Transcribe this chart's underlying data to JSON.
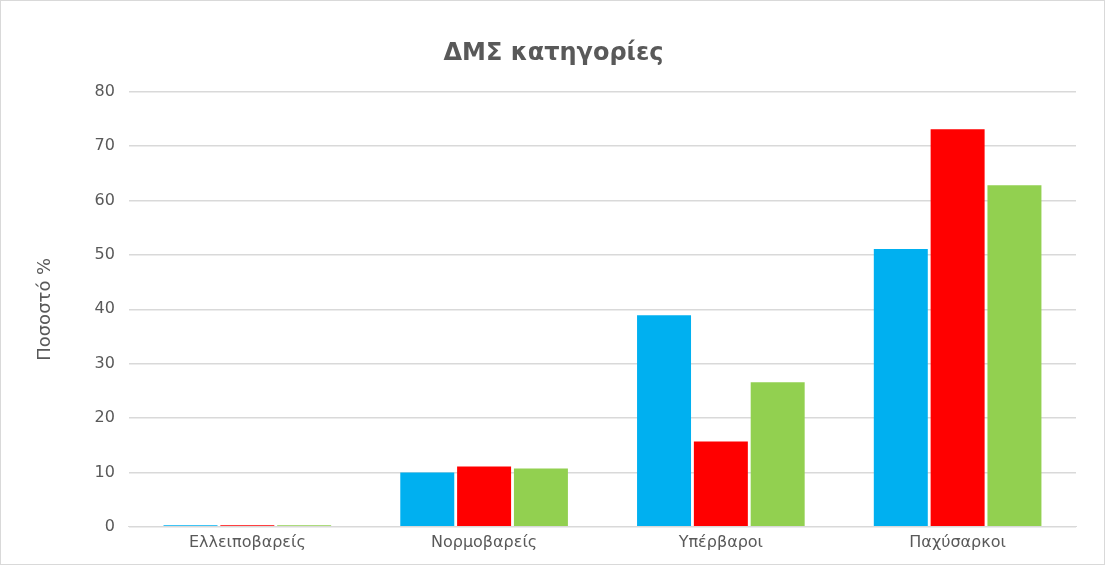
{
  "chart_data": {
    "type": "bar",
    "title": "ΔΜΣ κατηγορίες",
    "ylabel": "Ποσοστό %",
    "categories": [
      "Ελλειποβαρείς",
      "Νορμοβαρείς",
      "Υπέρβαροι",
      "Παχύσαρκοι"
    ],
    "series": [
      {
        "color": "#00b0f0",
        "values": [
          0.3,
          10,
          38.9,
          51.1
        ]
      },
      {
        "color": "#ff0000",
        "values": [
          0.3,
          11.1,
          15.7,
          73.1
        ]
      },
      {
        "color": "#92d050",
        "values": [
          0.3,
          10.7,
          26.6,
          62.8
        ]
      }
    ],
    "ylim": [
      0,
      80
    ],
    "yticks": [
      0,
      10,
      20,
      30,
      40,
      50,
      60,
      70,
      80
    ],
    "grid": "y",
    "legend": false
  }
}
